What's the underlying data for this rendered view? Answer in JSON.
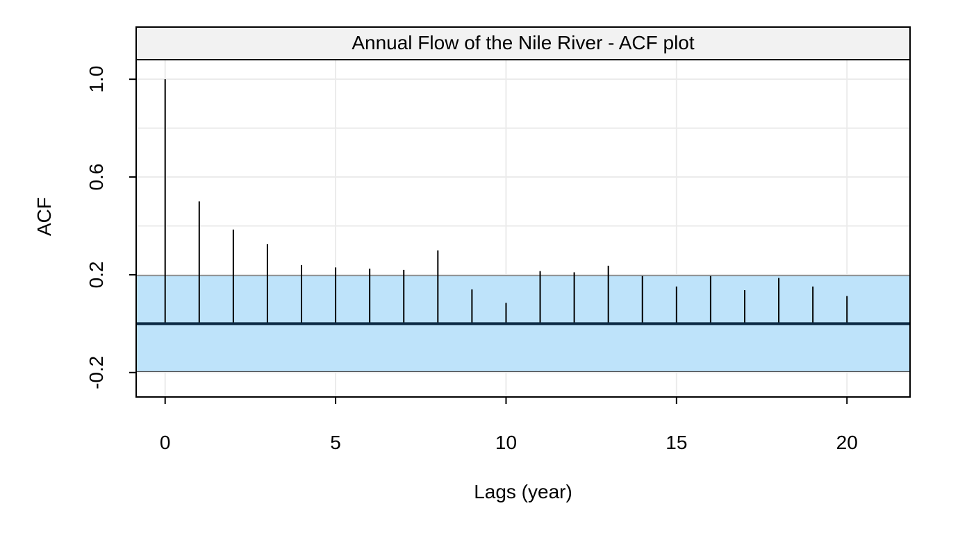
{
  "chart_data": {
    "type": "bar",
    "title": "Annual Flow of the Nile River - ACF plot",
    "xlabel": "Lags (year)",
    "ylabel": "ACF",
    "x": [
      0,
      1,
      2,
      3,
      4,
      5,
      6,
      7,
      8,
      9,
      10,
      11,
      12,
      13,
      14,
      15,
      16,
      17,
      18,
      19,
      20
    ],
    "values": [
      1.0,
      0.5,
      0.385,
      0.325,
      0.24,
      0.23,
      0.225,
      0.22,
      0.3,
      0.14,
      0.085,
      0.215,
      0.21,
      0.237,
      0.195,
      0.152,
      0.195,
      0.137,
      0.187,
      0.152,
      0.113
    ],
    "xlim": [
      -0.85,
      21.85
    ],
    "ylim": [
      -0.3,
      1.08
    ],
    "x_ticks": [
      0,
      5,
      10,
      15,
      20
    ],
    "x_tick_labels": [
      "0",
      "5",
      "10",
      "15",
      "20"
    ],
    "y_ticks": [
      -0.2,
      0.2,
      0.6,
      1.0
    ],
    "y_tick_labels": [
      "-0.2",
      "0.2",
      "0.6",
      "1.0"
    ],
    "y_gridlines": [
      -0.2,
      0,
      0.2,
      0.4,
      0.6,
      0.8,
      1.0
    ],
    "grid": true,
    "confidence_band": [
      -0.196,
      0.196
    ],
    "colors": {
      "band_fill": "#bee3fa",
      "band_edge": "#333333",
      "zero_line": "#0d2b45",
      "spike": "#000000",
      "grid": "#ebebeb",
      "strip_fill": "#f2f2f2"
    }
  }
}
